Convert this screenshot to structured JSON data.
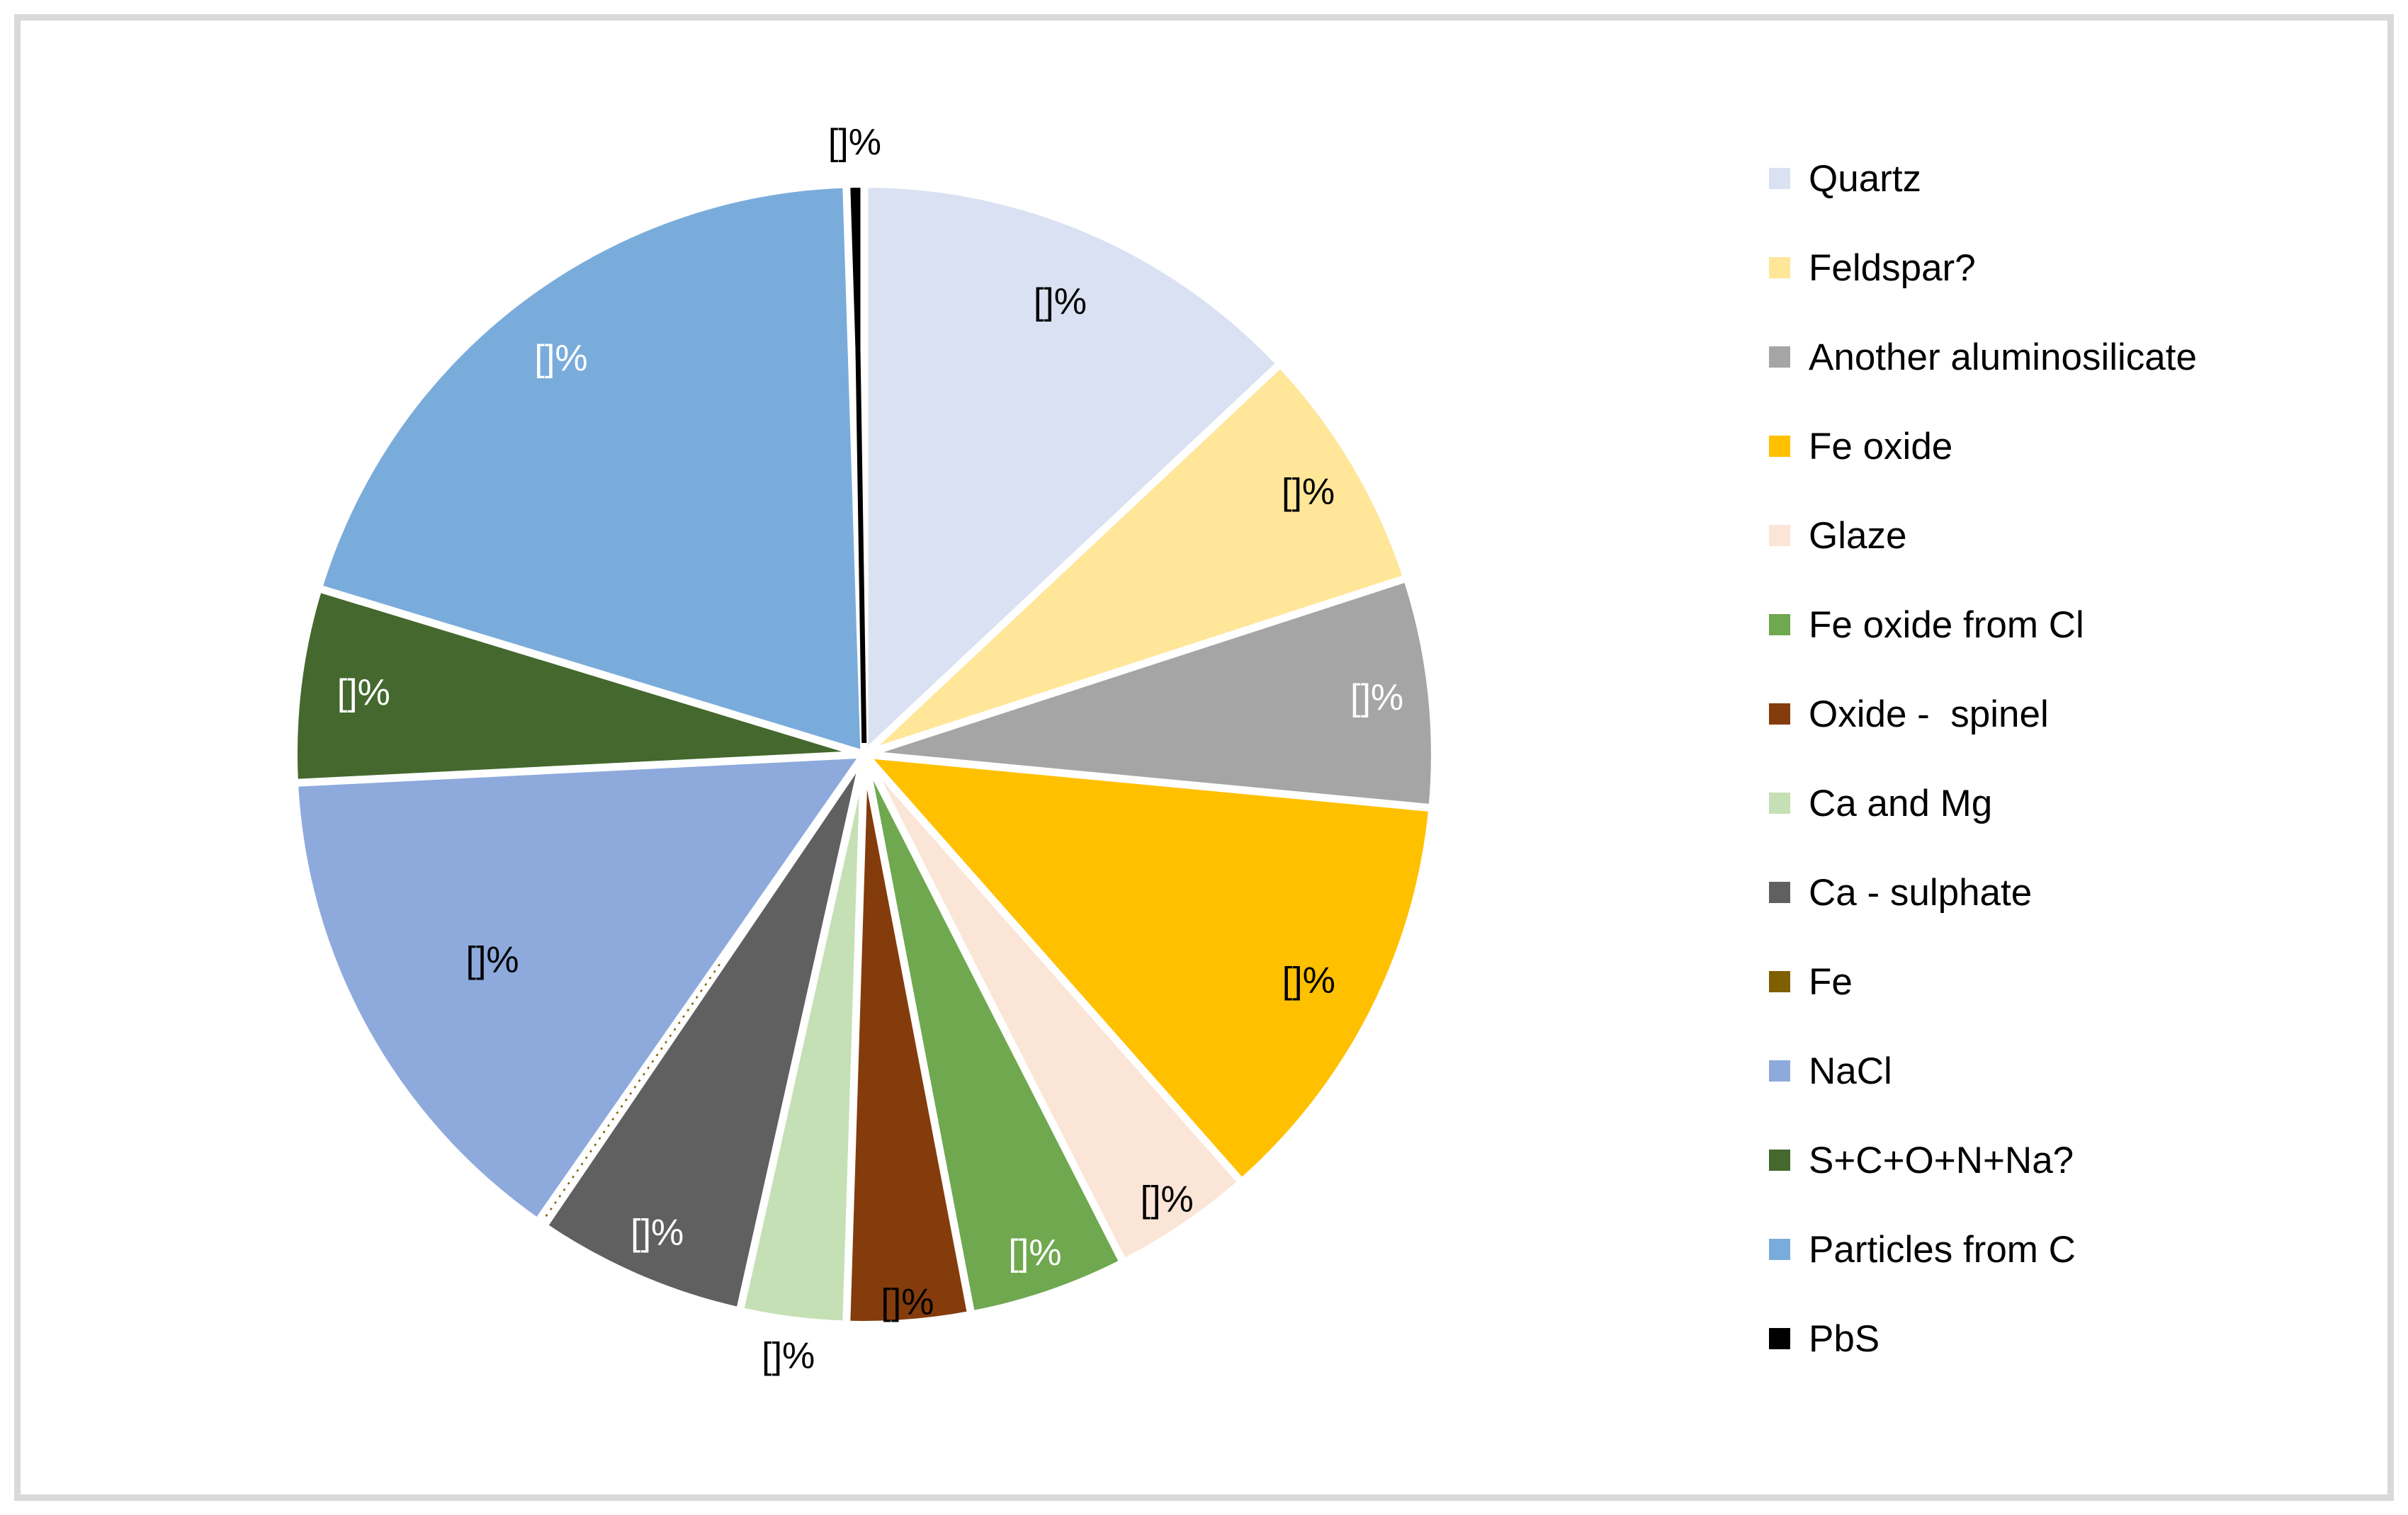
{
  "figure": {
    "background": "#FFFFFF",
    "frame_color": "#D9D9D9"
  },
  "chart_data": {
    "type": "pie",
    "title": "",
    "legend_position": "right",
    "data_label_text": "[]%",
    "values_estimated_from_angles": true,
    "slices": [
      {
        "name": "Quartz",
        "value_pct": 13.0,
        "color": "#D9E1F2",
        "label_color": "#000000",
        "label_r": 0.87,
        "show_label": true
      },
      {
        "name": "Feldspar?",
        "value_pct": 7.0,
        "color": "#FFE699",
        "label_color": "#000000",
        "label_r": 0.91,
        "show_label": true
      },
      {
        "name": "Another aluminosilicate",
        "value_pct": 6.5,
        "color": "#A5A5A5",
        "label_color": "#FFFFFF",
        "label_r": 0.91,
        "show_label": true
      },
      {
        "name": "Fe oxide",
        "value_pct": 12.0,
        "color": "#FFC000",
        "label_color": "#000000",
        "label_r": 0.88,
        "show_label": true
      },
      {
        "name": "Glaze",
        "value_pct": 4.0,
        "color": "#FBE5D6",
        "label_color": "#000000",
        "label_r": 0.95,
        "show_label": true
      },
      {
        "name": "Fe oxide from Cl",
        "value_pct": 4.5,
        "color": "#6FA84F",
        "label_color": "#FFFFFF",
        "label_r": 0.93,
        "show_label": true
      },
      {
        "name": "Oxide -  spinel",
        "value_pct": 3.5,
        "color": "#843C0C",
        "label_color": "#000000",
        "label_r": 0.97,
        "show_label": true
      },
      {
        "name": "Ca and Mg",
        "value_pct": 3.0,
        "color": "#C5E0B4",
        "label_color": "#000000",
        "label_r": 1.07,
        "show_label": true
      },
      {
        "name": "Ca - sulphate",
        "value_pct": 6.0,
        "color": "#606060",
        "label_color": "#FFFFFF",
        "label_r": 0.92,
        "show_label": true
      },
      {
        "name": "Fe",
        "value_pct": 0.2,
        "color": "#7F6000",
        "label_color": "#000000",
        "label_r": 0.9,
        "show_label": false
      },
      {
        "name": "NaCl",
        "value_pct": 14.5,
        "color": "#8EAADC",
        "label_color": "#000000",
        "label_r": 0.75,
        "show_label": true
      },
      {
        "name": "S+C+O+N+Na?",
        "value_pct": 5.5,
        "color": "#44682D",
        "label_color": "#FFFFFF",
        "label_r": 0.89,
        "show_label": true
      },
      {
        "name": "Particles from C",
        "value_pct": 19.8,
        "color": "#7AACDB",
        "label_color": "#FFFFFF",
        "label_r": 0.88,
        "show_label": true
      },
      {
        "name": "PbS",
        "value_pct": 0.5,
        "color": "#000000",
        "label_color": "#000000",
        "label_r": 1.08,
        "show_label": true
      }
    ]
  }
}
